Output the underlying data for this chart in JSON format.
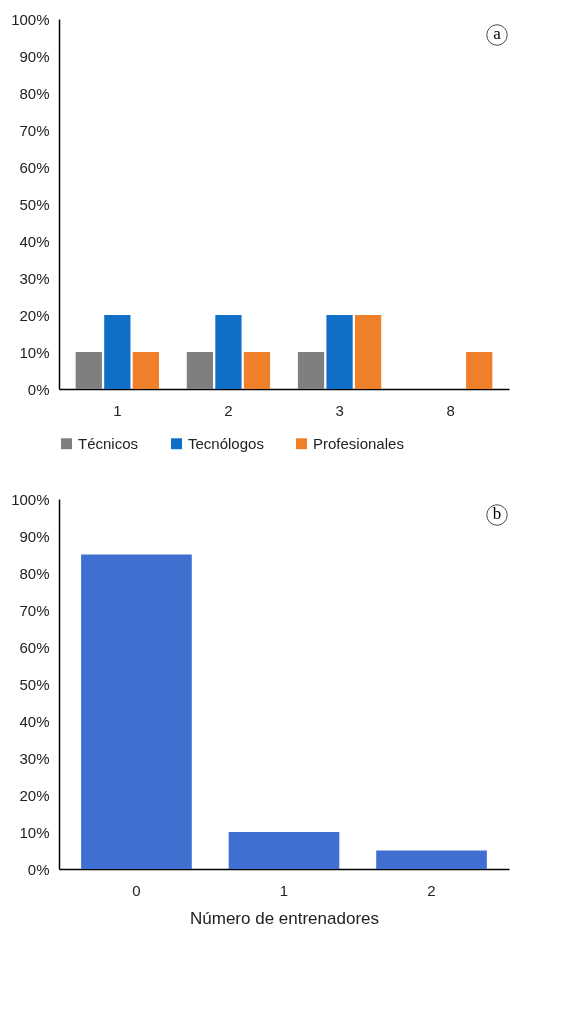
{
  "chart_data": [
    {
      "type": "bar",
      "categories": [
        "1",
        "2",
        "3",
        "8"
      ],
      "series": [
        {
          "name": "Técnicos",
          "color": "#7f7f7f",
          "values": [
            10,
            10,
            10,
            null
          ]
        },
        {
          "name": "Tecnólogos",
          "color": "#0f6fc6",
          "values": [
            20,
            20,
            20,
            null
          ]
        },
        {
          "name": "Profesionales",
          "color": "#f07f2a",
          "values": [
            10,
            10,
            20,
            10
          ]
        }
      ],
      "ylim": [
        0,
        100
      ],
      "yticks": [
        {
          "value": 0,
          "label": "0%"
        },
        {
          "value": 10,
          "label": "10%"
        },
        {
          "value": 20,
          "label": "20%"
        },
        {
          "value": 30,
          "label": "30%"
        },
        {
          "value": 40,
          "label": "40%"
        },
        {
          "value": 50,
          "label": "50%"
        },
        {
          "value": 60,
          "label": "60%"
        },
        {
          "value": 70,
          "label": "70%"
        },
        {
          "value": 80,
          "label": "80%"
        },
        {
          "value": 90,
          "label": "90%"
        },
        {
          "value": 100,
          "label": "100%"
        }
      ],
      "grid": false,
      "legend": "bottom",
      "annotations": [
        "a"
      ]
    },
    {
      "type": "bar",
      "categories": [
        "0",
        "1",
        "2"
      ],
      "xlabel": "Número de entrenadores",
      "series": [
        {
          "color": "#3f6fd0",
          "values": [
            85,
            10,
            5
          ]
        }
      ],
      "ylim": [
        0,
        100
      ],
      "yticks": [
        {
          "value": 0,
          "label": "0%"
        },
        {
          "value": 10,
          "label": "10%"
        },
        {
          "value": 20,
          "label": "20%"
        },
        {
          "value": 30,
          "label": "30%"
        },
        {
          "value": 40,
          "label": "40%"
        },
        {
          "value": 50,
          "label": "50%"
        },
        {
          "value": 60,
          "label": "60%"
        },
        {
          "value": 70,
          "label": "70%"
        },
        {
          "value": 80,
          "label": "80%"
        },
        {
          "value": 90,
          "label": "90%"
        },
        {
          "value": 100,
          "label": "100%"
        }
      ],
      "grid": false,
      "annotations": [
        "b"
      ]
    }
  ]
}
